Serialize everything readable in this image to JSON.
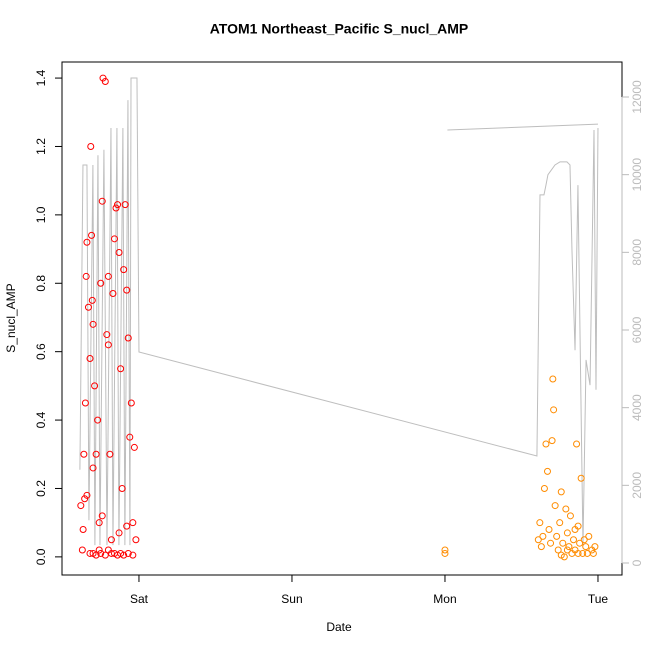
{
  "chart_data": {
    "type": "scatter",
    "title": "ATOM1 Northeast_Pacific S_nucl_AMP",
    "x_label": "Date",
    "y_label": "S_nucl_AMP",
    "xlim": [
      0.497,
      4.157
    ],
    "xticks": [
      {
        "value": 1,
        "label": "Sat"
      },
      {
        "value": 2,
        "label": "Sun"
      },
      {
        "value": 3,
        "label": "Mon"
      },
      {
        "value": 4,
        "label": "Tue"
      }
    ],
    "ylim": [
      -0.053,
      1.447
    ],
    "yticks": [
      {
        "value": 0,
        "label": "0.0"
      },
      0.2,
      0.4,
      0.6,
      0.8,
      {
        "value": 1,
        "label": "1.0"
      },
      1.2,
      1.4
    ],
    "y2lim": [
      -309,
      12901
    ],
    "y2ticks": [
      0,
      2000,
      4000,
      6000,
      8000,
      10000,
      12000
    ],
    "series": [
      {
        "type": "line",
        "axis": "y2",
        "color": "#bebebe",
        "x": [
          0.614,
          0.634,
          0.66,
          0.673,
          0.699,
          0.712,
          0.732,
          0.745,
          0.771,
          0.791,
          0.817,
          0.83,
          0.856,
          0.869,
          0.895,
          0.908,
          0.928,
          0.941,
          0.948,
          0.987,
          1.0,
          3.601,
          3.621,
          3.647,
          3.66,
          3.673,
          3.719,
          3.752,
          3.797,
          3.817,
          3.83,
          3.85,
          3.869,
          3.902,
          3.922,
          3.948,
          3.974,
          3.987,
          4.0,
          3.013,
          3.016,
          4.0
        ],
        "values": [
          2400,
          10250,
          10250,
          1100,
          10250,
          460,
          10500,
          460,
          10640,
          460,
          11200,
          460,
          11200,
          460,
          11200,
          460,
          11920,
          460,
          12490,
          12490,
          5434,
          2755,
          9480,
          9480,
          9730,
          10000,
          10250,
          10330,
          10330,
          10250,
          8060,
          5480,
          9730,
          460,
          5230,
          4580,
          11150,
          4460,
          11200,
          null,
          11150,
          11300
        ]
      },
      {
        "color": "#ff0000",
        "x": [
          0.63,
          0.635,
          0.64,
          0.645,
          0.65,
          0.655,
          0.66,
          0.67,
          0.68,
          0.685,
          0.69,
          0.695,
          0.7,
          0.71,
          0.72,
          0.73,
          0.74,
          0.75,
          0.76,
          0.765,
          0.78,
          0.79,
          0.8,
          0.81,
          0.82,
          0.83,
          0.84,
          0.85,
          0.86,
          0.87,
          0.88,
          0.89,
          0.9,
          0.91,
          0.92,
          0.93,
          0.94,
          0.95,
          0.96,
          0.97,
          0.98,
          0.62,
          0.66,
          0.7,
          0.72,
          0.75,
          0.78,
          0.8,
          0.84,
          0.86,
          0.88,
          0.9,
          0.93,
          0.96,
          0.68,
          0.74,
          0.82,
          0.87,
          0.92,
          0.76,
          0.7,
          0.8
        ],
        "values": [
          0.02,
          0.08,
          0.3,
          0.17,
          0.45,
          0.82,
          0.92,
          0.73,
          0.58,
          1.2,
          0.94,
          0.75,
          0.26,
          0.5,
          0.3,
          0.4,
          0.1,
          0.8,
          1.04,
          1.4,
          1.39,
          0.65,
          0.82,
          0.3,
          0.05,
          0.77,
          0.93,
          1.02,
          1.03,
          0.89,
          0.55,
          0.2,
          0.84,
          1.03,
          0.78,
          0.64,
          0.35,
          0.45,
          0.1,
          0.32,
          0.05,
          0.15,
          0.18,
          0.01,
          0.005,
          0.01,
          0.005,
          0.02,
          0.01,
          0.005,
          0.01,
          0.005,
          0.01,
          0.005,
          0.01,
          0.02,
          0.01,
          0.07,
          0.09,
          0.12,
          0.68,
          0.62
        ]
      },
      {
        "color": "#ff8c00",
        "x": [
          3.0,
          3.0,
          3.61,
          3.62,
          3.63,
          3.65,
          3.66,
          3.67,
          3.68,
          3.7,
          3.705,
          3.71,
          3.72,
          3.73,
          3.74,
          3.75,
          3.76,
          3.77,
          3.78,
          3.79,
          3.8,
          3.81,
          3.82,
          3.83,
          3.84,
          3.85,
          3.86,
          3.87,
          3.88,
          3.89,
          3.9,
          3.92,
          3.94,
          3.96,
          3.98,
          3.64,
          3.69,
          3.76,
          3.8,
          3.85,
          3.87,
          3.91,
          3.93,
          3.97
        ],
        "values": [
          0.02,
          0.01,
          0.05,
          0.1,
          0.03,
          0.2,
          0.33,
          0.25,
          0.08,
          0.34,
          0.52,
          0.43,
          0.15,
          0.06,
          0.02,
          0.1,
          0.19,
          0.04,
          0.0,
          0.14,
          0.07,
          0.03,
          0.12,
          0.01,
          0.05,
          0.02,
          0.33,
          0.09,
          0.04,
          0.23,
          0.01,
          0.03,
          0.06,
          0.02,
          0.03,
          0.06,
          0.04,
          0.005,
          0.02,
          0.08,
          0.01,
          0.05,
          0.01,
          0.01
        ]
      }
    ]
  }
}
